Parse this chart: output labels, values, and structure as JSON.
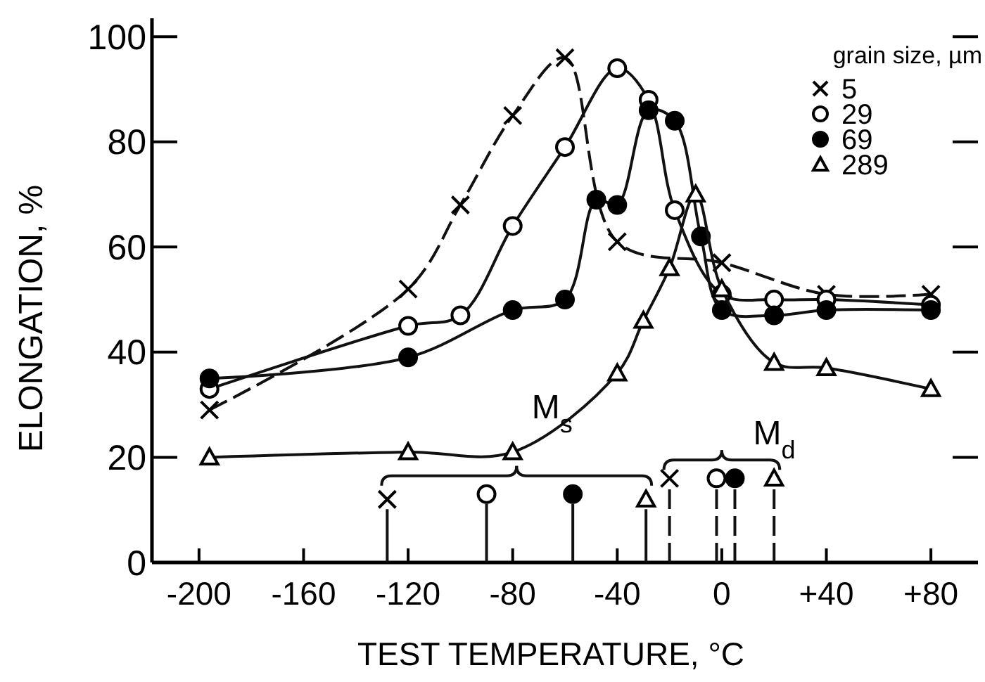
{
  "chart_data": {
    "type": "line",
    "xlabel": "TEST TEMPERATURE, °C",
    "ylabel": "ELONGATION, %",
    "legend_title": "grain size, µm",
    "legend": "top right",
    "xlim": [
      -218,
      98
    ],
    "ylim": [
      0,
      103.5
    ],
    "xticks": [
      -200,
      -160,
      -120,
      -80,
      -40,
      0,
      {
        "value": 40,
        "label": "+40"
      },
      {
        "value": 80,
        "label": "+80"
      }
    ],
    "yticks": [
      0,
      20,
      40,
      60,
      80,
      100
    ],
    "annotations": [
      {
        "text": "M$_{s}$",
        "x": -80,
        "y": 21
      },
      {
        "text": "M$_{d}$",
        "x": 5,
        "y": 16
      }
    ],
    "series": [
      {
        "name": "5",
        "color": "#000000",
        "marker": "cross",
        "line_style": "dashed",
        "x": [
          -196,
          -120,
          -100,
          -80,
          -60,
          -40,
          0,
          40,
          80
        ],
        "values": [
          29,
          52,
          68,
          85,
          96,
          61,
          57,
          51,
          51
        ]
      },
      {
        "name": "29",
        "color": "#ffffff",
        "marker": "circle",
        "line_style": "solid",
        "x": [
          -196,
          -120,
          -100,
          -80,
          -60,
          -40,
          -28,
          -18,
          0,
          20,
          40,
          80
        ],
        "values": [
          33,
          45,
          47,
          64,
          79,
          94,
          88,
          67,
          51,
          50,
          50,
          49
        ]
      },
      {
        "name": "69",
        "color": "#000000",
        "marker": "circle",
        "line_style": "solid",
        "x": [
          -196,
          -120,
          -80,
          -60,
          -48,
          -40,
          -28,
          -18,
          -8,
          0,
          20,
          40,
          80
        ],
        "values": [
          35,
          39,
          48,
          50,
          69,
          68,
          86,
          84,
          62,
          48,
          47,
          48,
          48
        ]
      },
      {
        "name": "289",
        "color": "#ffffff",
        "marker": "triangle",
        "line_style": "solid",
        "x": [
          -196,
          -120,
          -80,
          -40,
          -30,
          -20,
          -10,
          0,
          20,
          40,
          80
        ],
        "values": [
          20,
          21,
          21,
          36,
          46,
          56,
          70,
          52,
          38,
          37,
          33
        ]
      },
      {
        "type": "lollipop",
        "color": "#000000",
        "marker": "cross",
        "line_style": "solid",
        "x": [
          -128
        ],
        "values": [
          12
        ]
      },
      {
        "type": "lollipop",
        "color": "#ffffff",
        "marker": "circle",
        "line_style": "solid",
        "x": [
          -90
        ],
        "values": [
          13
        ]
      },
      {
        "type": "lollipop",
        "color": "#000000",
        "marker": "circle",
        "line_style": "solid",
        "x": [
          -57
        ],
        "values": [
          13
        ]
      },
      {
        "type": "lollipop",
        "color": "#ffffff",
        "marker": "triangle",
        "line_style": "solid",
        "x": [
          -29
        ],
        "values": [
          12
        ]
      },
      {
        "type": "lollipop",
        "color": "#000000",
        "marker": "cross",
        "line_style": "dashed",
        "x": [
          -20
        ],
        "values": [
          16
        ]
      },
      {
        "type": "lollipop",
        "color": "#ffffff",
        "marker": "circle",
        "line_style": "dashed",
        "x": [
          -2
        ],
        "values": [
          16
        ]
      },
      {
        "type": "lollipop",
        "color": "#000000",
        "marker": "circle",
        "line_style": "dashed",
        "x": [
          5
        ],
        "values": [
          16
        ]
      },
      {
        "type": "lollipop",
        "color": "#ffffff",
        "marker": "triangle",
        "line_style": "dashed",
        "x": [
          20
        ],
        "values": [
          16
        ]
      }
    ]
  }
}
